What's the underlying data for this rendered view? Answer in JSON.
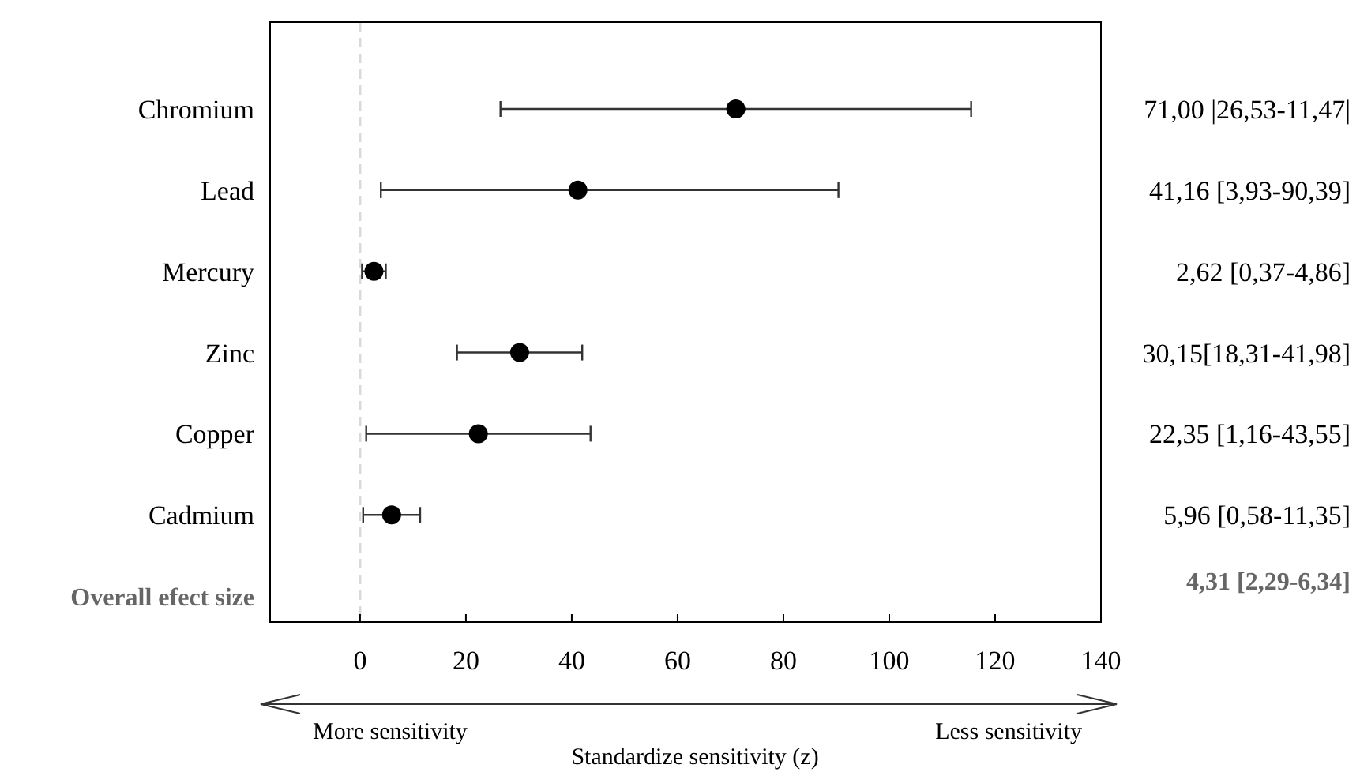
{
  "chart_data": {
    "type": "scatter",
    "orientation": "horizontal",
    "xlabel": "Standardize sensitivity (z)",
    "categories": [
      "Chromium",
      "Lead",
      "Mercury",
      "Zinc",
      "Copper",
      "Cadmium",
      "Overall efect size"
    ],
    "values": [
      71.0,
      41.16,
      2.62,
      30.15,
      22.35,
      5.96,
      null
    ],
    "errors": [
      [
        26.53,
        115.47
      ],
      [
        3.93,
        90.39
      ],
      [
        0.37,
        4.86
      ],
      [
        18.31,
        41.98
      ],
      [
        1.16,
        43.55
      ],
      [
        0.58,
        11.35
      ],
      null
    ],
    "value_labels": [
      "71,00 |26,53-11,47|",
      "41,16 [3,93-90,39]",
      "2,62 [0,37-4,86]",
      "30,15[18,31-41,98]",
      "22,35 [1,16-43,55]",
      "5,96 [0,58-11,35]",
      "4,31 [2,29-6,34]"
    ],
    "color": "#000000",
    "marker": "circle",
    "xlim": [
      -17,
      140
    ],
    "xticks": [
      0,
      20,
      40,
      60,
      80,
      100,
      120,
      140
    ],
    "ref_lines": [
      {
        "axis": "x",
        "value": 0,
        "color": "#d9d9d9",
        "line_style": "dashed"
      }
    ],
    "annotations": [
      "More sensitivity",
      "Less sensitivity"
    ]
  }
}
